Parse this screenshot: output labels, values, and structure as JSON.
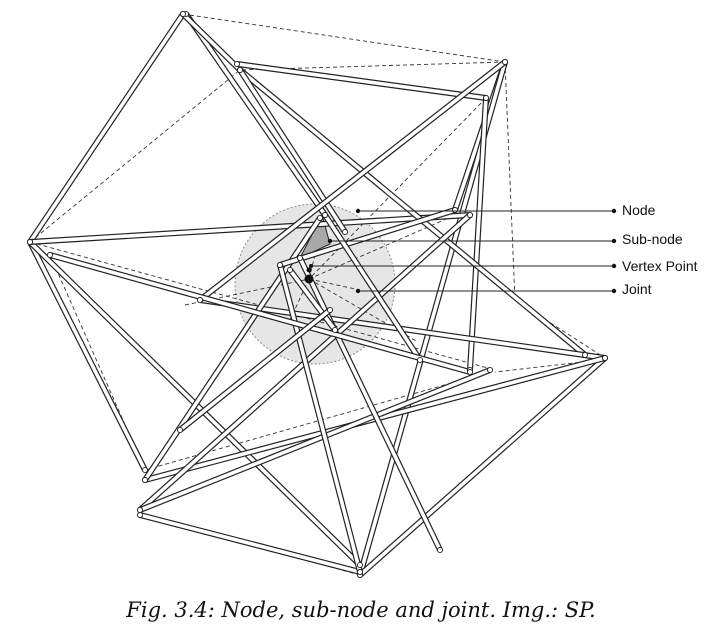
{
  "labels": {
    "node": "Node",
    "sub_node": "Sub-node",
    "vertex_point": "Vertex Point",
    "joint": "Joint"
  },
  "caption": "Fig. 3.4: Node, sub-node and joint. Img.: SP.",
  "colors": {
    "strut_stroke": "#222222",
    "strut_fill": "#ffffff",
    "node_zone_fill": "#e6e6e6",
    "sub_node_fill": "#a9a9a9",
    "cable_stroke": "#333333"
  }
}
